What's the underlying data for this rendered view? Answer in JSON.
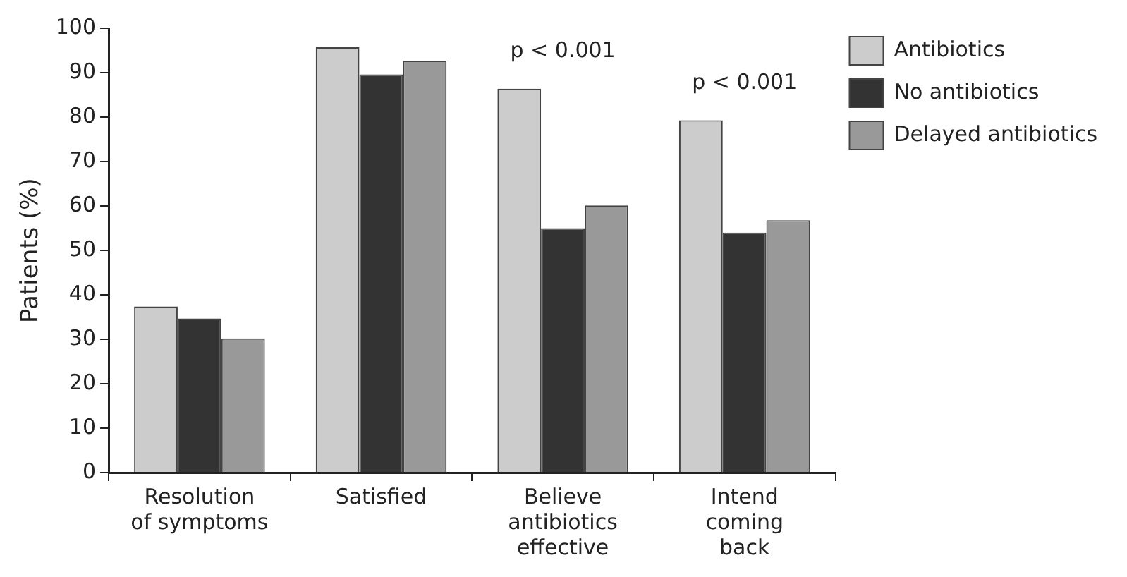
{
  "chart_data": {
    "type": "bar",
    "ylabel": "Patients (%)",
    "categories": [
      "Resolution\nof symptoms",
      "Satisfied",
      "Believe\nantibiotics\neffective",
      "Intend\ncoming\nback"
    ],
    "series": [
      {
        "name": "Antibiotics",
        "color": "#cccccc",
        "values": [
          37.4,
          95.7,
          86.4,
          79.3
        ]
      },
      {
        "name": "No antibiotics",
        "color": "#333333",
        "values": [
          34.7,
          89.6,
          55.0,
          54.0
        ]
      },
      {
        "name": "Delayed antibiotics",
        "color": "#999999",
        "values": [
          30.2,
          92.7,
          60.1,
          56.8
        ]
      }
    ],
    "ylim": [
      0,
      100
    ],
    "yticks": [
      0,
      10,
      20,
      30,
      40,
      50,
      60,
      70,
      80,
      90,
      100
    ],
    "annotations": [
      "p < 0.001",
      "p < 0.001"
    ],
    "legend": "top right",
    "grid": false
  }
}
